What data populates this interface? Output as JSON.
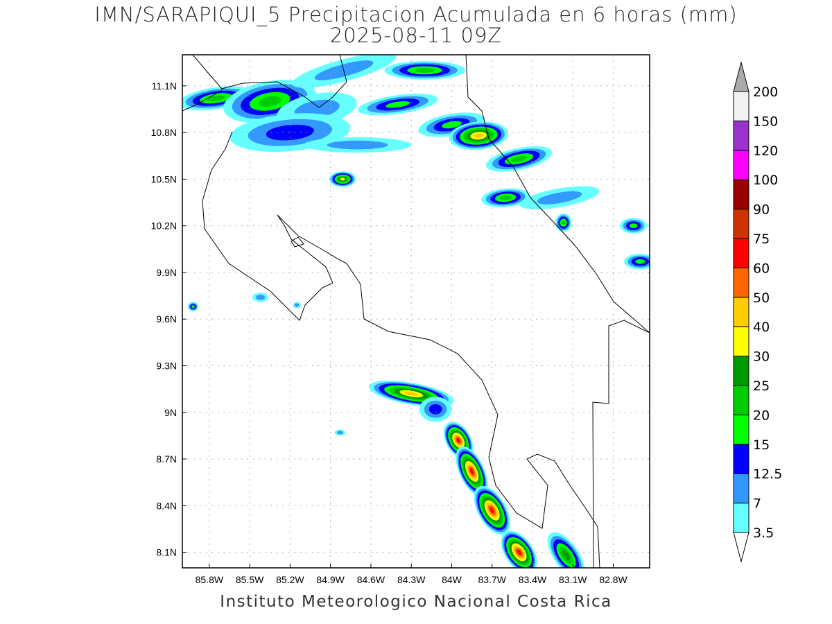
{
  "title": {
    "line1": "IMN/SARAPIQUI_5 Precipitacion Acumulada en 6 horas (mm)",
    "line2": "2025-08-11 09Z"
  },
  "footer": "Instituto Meteorologico Nacional Costa Rica",
  "chart_data": {
    "type": "heatmap",
    "title": "IMN/SARAPIQUI_5 Precipitacion Acumulada en 6 horas (mm)",
    "subtitle": "2025-08-11 09Z",
    "xlim": [
      -86.0,
      -82.53
    ],
    "ylim": [
      8.0,
      11.3
    ],
    "x_ticks": [
      -85.8,
      -85.5,
      -85.2,
      -84.9,
      -84.6,
      -84.3,
      -84.0,
      -83.7,
      -83.4,
      -83.1,
      -82.8
    ],
    "x_tick_labels": [
      "85.8W",
      "85.5W",
      "85.2W",
      "84.9W",
      "84.6W",
      "84.3W",
      "84W",
      "83.7W",
      "83.4W",
      "83.1W",
      "82.8W"
    ],
    "y_ticks": [
      11.1,
      10.8,
      10.5,
      10.2,
      9.9,
      9.6,
      9.3,
      9.0,
      8.7,
      8.4,
      8.1
    ],
    "y_tick_labels": [
      "11.1N",
      "10.8N",
      "10.5N",
      "10.2N",
      "9.9N",
      "9.6N",
      "9.3N",
      "9N",
      "8.7N",
      "8.4N",
      "8.1N"
    ],
    "grid": true,
    "colorbar": {
      "labels": [
        "3.5",
        "7",
        "12.5",
        "15",
        "20",
        "25",
        "30",
        "40",
        "50",
        "60",
        "75",
        "90",
        "100",
        "120",
        "150",
        "200"
      ],
      "colors": [
        "#66ffff",
        "#3399ff",
        "#0000ff",
        "#00ff00",
        "#00cc00",
        "#009900",
        "#ffff00",
        "#ffcc00",
        "#ff6600",
        "#ff0000",
        "#cc3300",
        "#990000",
        "#ff00ff",
        "#9933cc",
        "#f2f2f2"
      ],
      "over_color": "#aaaaaa",
      "under_color": "#ffffff",
      "placement": "right"
    },
    "cells": [
      {
        "lon": -85.75,
        "lat": 11.02,
        "rlon": 0.28,
        "rlat": 0.07,
        "max": 4,
        "rot": -8
      },
      {
        "lon": -85.35,
        "lat": 11.0,
        "rlon": 0.35,
        "rlat": 0.13,
        "max": 4,
        "rot": -10
      },
      {
        "lon": -85.0,
        "lat": 10.95,
        "rlon": 0.3,
        "rlat": 0.1,
        "max": 1,
        "rot": -10
      },
      {
        "lon": -85.2,
        "lat": 10.8,
        "rlon": 0.45,
        "rlat": 0.12,
        "max": 2,
        "rot": -5
      },
      {
        "lon": -84.8,
        "lat": 11.2,
        "rlon": 0.4,
        "rlat": 0.07,
        "max": 1,
        "rot": -15
      },
      {
        "lon": -84.2,
        "lat": 11.2,
        "rlon": 0.3,
        "rlat": 0.06,
        "max": 4,
        "rot": 0
      },
      {
        "lon": -84.4,
        "lat": 10.98,
        "rlon": 0.3,
        "rlat": 0.06,
        "max": 3,
        "rot": -8
      },
      {
        "lon": -84.7,
        "lat": 10.72,
        "rlon": 0.4,
        "rlat": 0.05,
        "max": 1,
        "rot": 0
      },
      {
        "lon": -84.0,
        "lat": 10.85,
        "rlon": 0.25,
        "rlat": 0.07,
        "max": 3,
        "rot": -10
      },
      {
        "lon": -83.8,
        "lat": 10.78,
        "rlon": 0.22,
        "rlat": 0.09,
        "max": 7,
        "rot": -5
      },
      {
        "lon": -83.5,
        "lat": 10.63,
        "rlon": 0.25,
        "rlat": 0.07,
        "max": 4,
        "rot": -12
      },
      {
        "lon": -84.81,
        "lat": 10.5,
        "rlon": 0.1,
        "rlat": 0.05,
        "max": 6,
        "rot": 0
      },
      {
        "lon": -83.6,
        "lat": 10.38,
        "rlon": 0.18,
        "rlat": 0.06,
        "max": 4,
        "rot": -5
      },
      {
        "lon": -83.2,
        "lat": 10.38,
        "rlon": 0.3,
        "rlat": 0.06,
        "max": 1,
        "rot": -10
      },
      {
        "lon": -83.17,
        "lat": 10.22,
        "rlon": 0.06,
        "rlat": 0.06,
        "max": 4,
        "rot": 0
      },
      {
        "lon": -82.65,
        "lat": 10.2,
        "rlon": 0.1,
        "rlat": 0.05,
        "max": 3,
        "rot": 0
      },
      {
        "lon": -82.6,
        "lat": 9.97,
        "rlon": 0.12,
        "rlat": 0.05,
        "max": 3,
        "rot": 0
      },
      {
        "lon": -85.92,
        "lat": 9.68,
        "rlon": 0.04,
        "rlat": 0.03,
        "max": 3,
        "rot": 0
      },
      {
        "lon": -85.42,
        "lat": 9.74,
        "rlon": 0.06,
        "rlat": 0.03,
        "max": 1,
        "rot": 0
      },
      {
        "lon": -85.15,
        "lat": 9.69,
        "rlon": 0.03,
        "rlat": 0.02,
        "max": 1,
        "rot": 0
      },
      {
        "lon": -84.3,
        "lat": 9.12,
        "rlon": 0.32,
        "rlat": 0.07,
        "max": 7,
        "rot": 10
      },
      {
        "lon": -84.12,
        "lat": 9.02,
        "rlon": 0.12,
        "rlat": 0.08,
        "max": 2,
        "rot": 0
      },
      {
        "lon": -83.95,
        "lat": 8.82,
        "rlon": 0.15,
        "rlat": 0.08,
        "max": 9,
        "rot": 60
      },
      {
        "lon": -83.85,
        "lat": 8.62,
        "rlon": 0.2,
        "rlat": 0.08,
        "max": 9,
        "rot": 65
      },
      {
        "lon": -83.7,
        "lat": 8.37,
        "rlon": 0.2,
        "rlat": 0.09,
        "max": 9,
        "rot": 60
      },
      {
        "lon": -83.5,
        "lat": 8.1,
        "rlon": 0.18,
        "rlat": 0.09,
        "max": 9,
        "rot": 55
      },
      {
        "lon": -83.15,
        "lat": 8.08,
        "rlon": 0.2,
        "rlat": 0.08,
        "max": 5,
        "rot": 55
      },
      {
        "lon": -84.83,
        "lat": 8.87,
        "rlon": 0.04,
        "rlat": 0.02,
        "max": 1,
        "rot": 0
      }
    ]
  }
}
